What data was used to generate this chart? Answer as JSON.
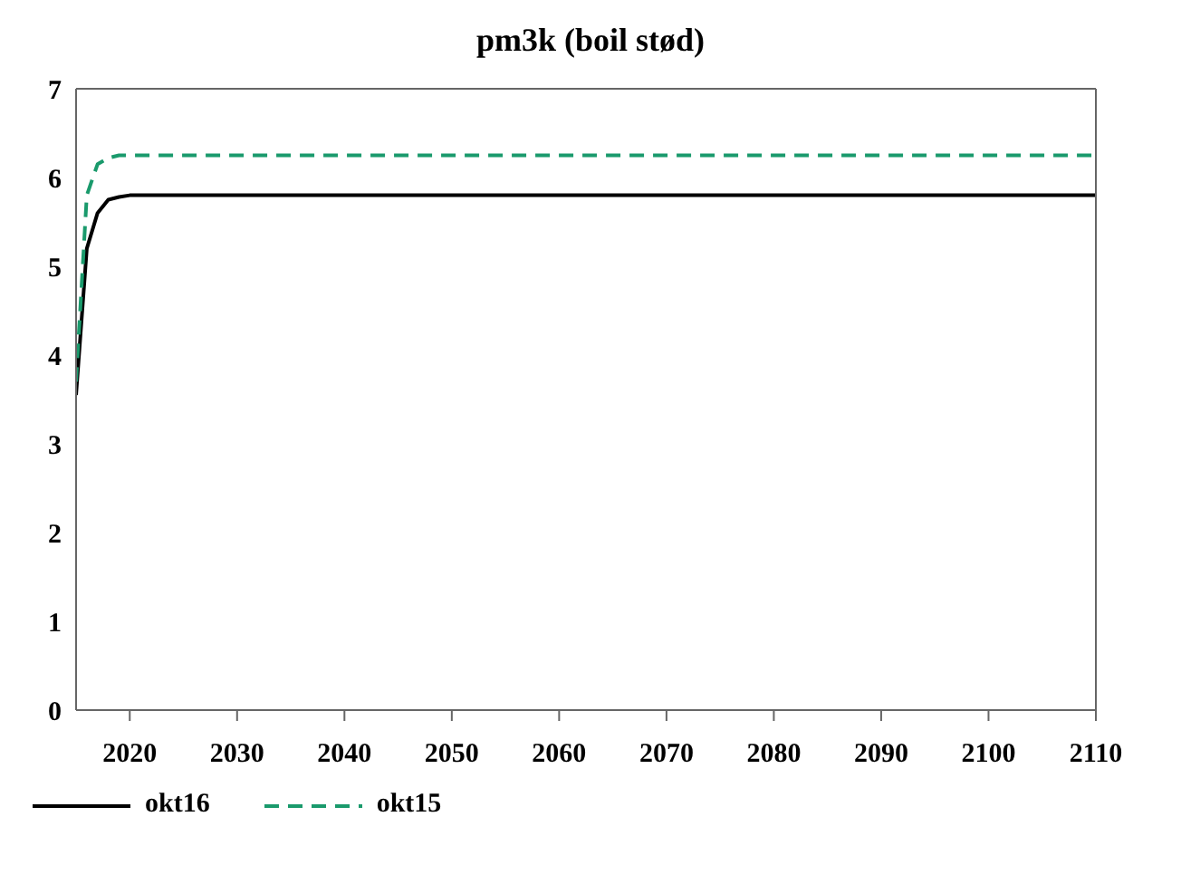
{
  "chart_data": {
    "type": "line",
    "title": "pm3k (boil stød)",
    "xlim": [
      2015,
      2110
    ],
    "xticks": [
      2020,
      2030,
      2040,
      2050,
      2060,
      2070,
      2080,
      2090,
      2100,
      2110
    ],
    "ylim": [
      0,
      7
    ],
    "yticks": [
      0,
      1,
      2,
      3,
      4,
      5,
      6,
      7
    ],
    "legend": "bottom left",
    "marker": "none",
    "series": [
      {
        "name": "okt16",
        "color": "#000000",
        "line_style": "solid",
        "x": [
          2015,
          2016,
          2017,
          2018,
          2019,
          2020,
          2030,
          2050,
          2080,
          2110
        ],
        "values": [
          3.55,
          5.2,
          5.6,
          5.75,
          5.78,
          5.8,
          5.8,
          5.8,
          5.8,
          5.8
        ]
      },
      {
        "name": "okt15",
        "color": "#1a9a6c",
        "line_style": "dashed",
        "x": [
          2015,
          2016,
          2017,
          2018,
          2019,
          2020,
          2030,
          2050,
          2080,
          2110
        ],
        "values": [
          3.7,
          5.8,
          6.15,
          6.22,
          6.25,
          6.25,
          6.25,
          6.25,
          6.25,
          6.25
        ]
      }
    ]
  }
}
